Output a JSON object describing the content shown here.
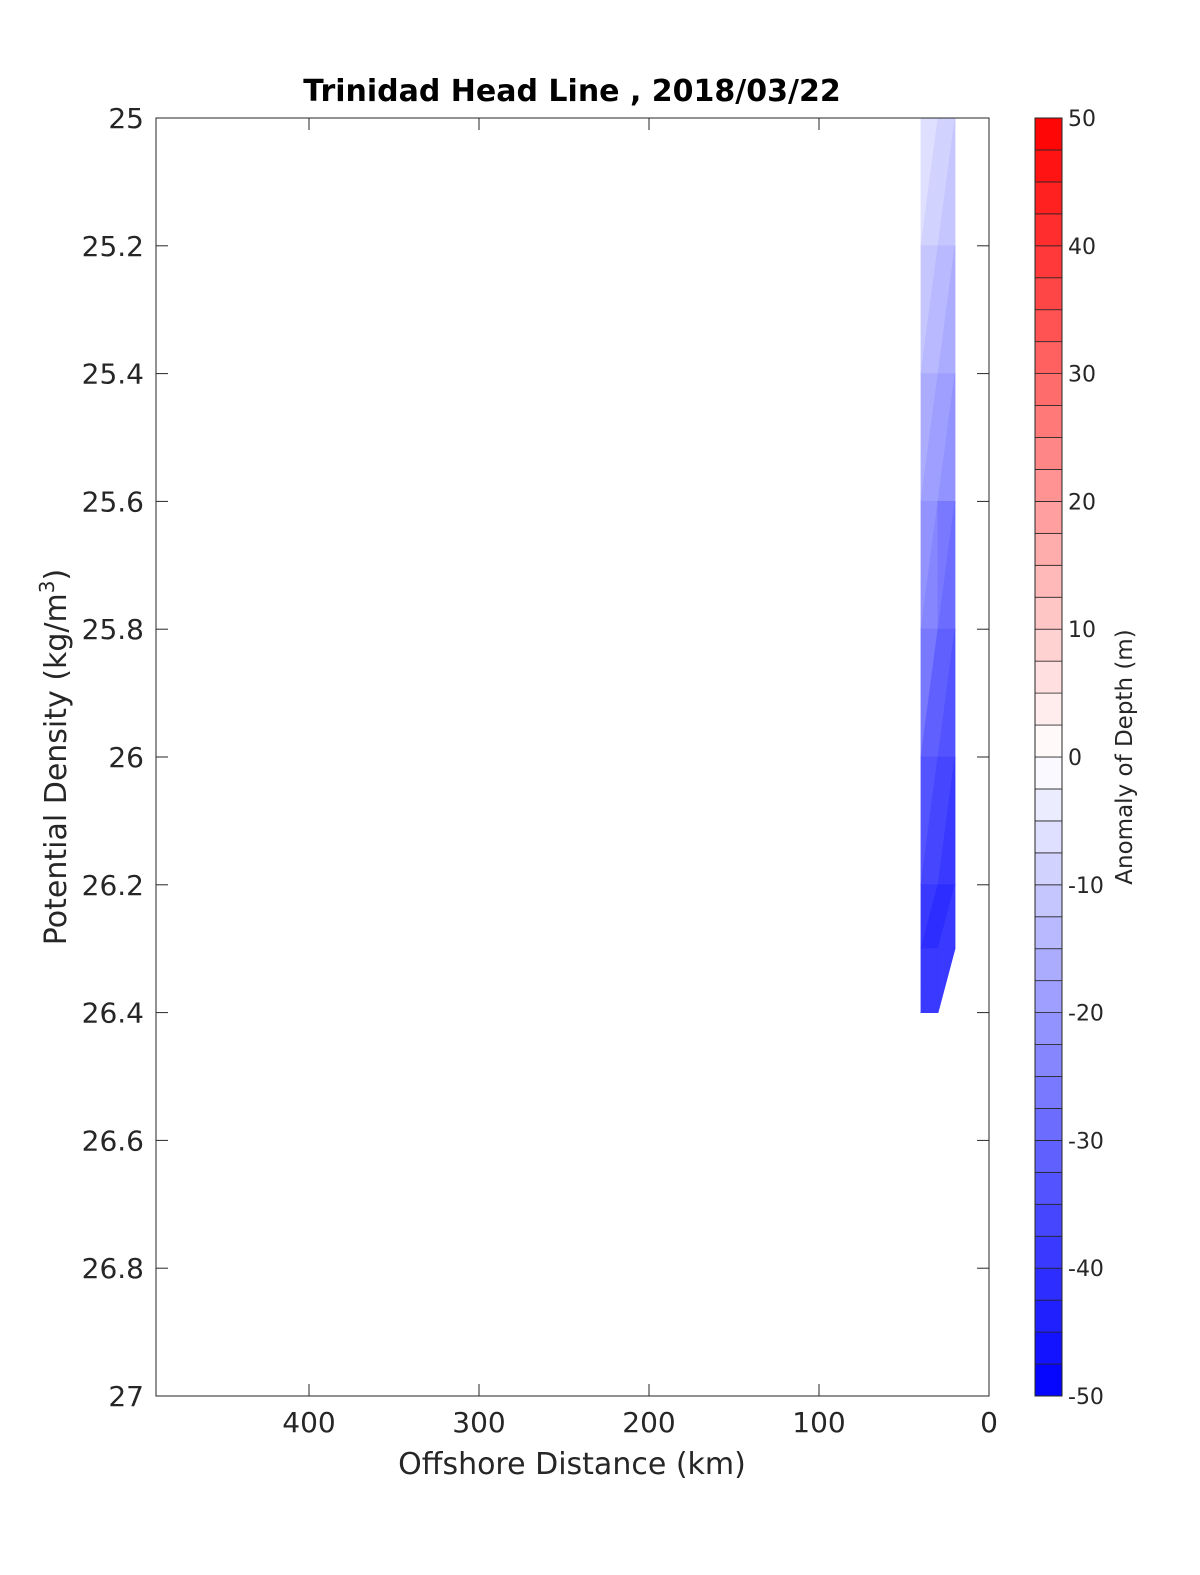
{
  "chart_data": {
    "type": "heatmap",
    "title": "Trinidad Head Line , 2018/03/22",
    "xlabel": "Offshore Distance (km)",
    "ylabel_main": "Potential Density (kg/m",
    "ylabel_sup": "3",
    "ylabel_close": ")",
    "x_reversed": true,
    "xlim": [
      0,
      490
    ],
    "ylim": [
      25,
      27
    ],
    "y_reversed": true,
    "xticks": [
      400,
      300,
      200,
      100,
      0
    ],
    "xtick_labels": [
      "400",
      "300",
      "200",
      "100",
      "0"
    ],
    "yticks": [
      25,
      25.2,
      25.4,
      25.6,
      25.8,
      26,
      26.2,
      26.4,
      26.6,
      26.8,
      27
    ],
    "ytick_labels": [
      "25",
      "25.2",
      "25.4",
      "25.6",
      "25.8",
      "26",
      "26.2",
      "26.4",
      "26.6",
      "26.8",
      "27"
    ],
    "grid": false,
    "colorbar": {
      "label": "Anomaly of Depth (m)",
      "range": [
        -50,
        50
      ],
      "step": 2.5,
      "ticks": [
        50,
        40,
        30,
        20,
        10,
        0,
        -10,
        -20,
        -30,
        -40,
        -50
      ],
      "tick_labels": [
        "50",
        "40",
        "30",
        "20",
        "10",
        "0",
        "-10",
        "-20",
        "-30",
        "-40",
        "-50"
      ],
      "negative_color": "#0000ff",
      "positive_color": "#ff0000",
      "neutral_color": "#ffffff"
    },
    "data": {
      "x": [
        40,
        30,
        20
      ],
      "y": [
        25,
        25.2,
        25.4,
        25.6,
        25.8,
        26,
        26.2,
        26.3,
        26.4
      ],
      "values": [
        [
          -5,
          -7,
          -8
        ],
        [
          -9,
          -11,
          -12
        ],
        [
          -13,
          -16,
          -18
        ],
        [
          -18,
          -22,
          -25
        ],
        [
          -24,
          -28,
          -31
        ],
        [
          -30,
          -34,
          -36
        ],
        [
          -36,
          -41,
          -39
        ],
        [
          -37,
          -42,
          -37
        ],
        [
          -35,
          -38,
          null
        ]
      ]
    }
  }
}
